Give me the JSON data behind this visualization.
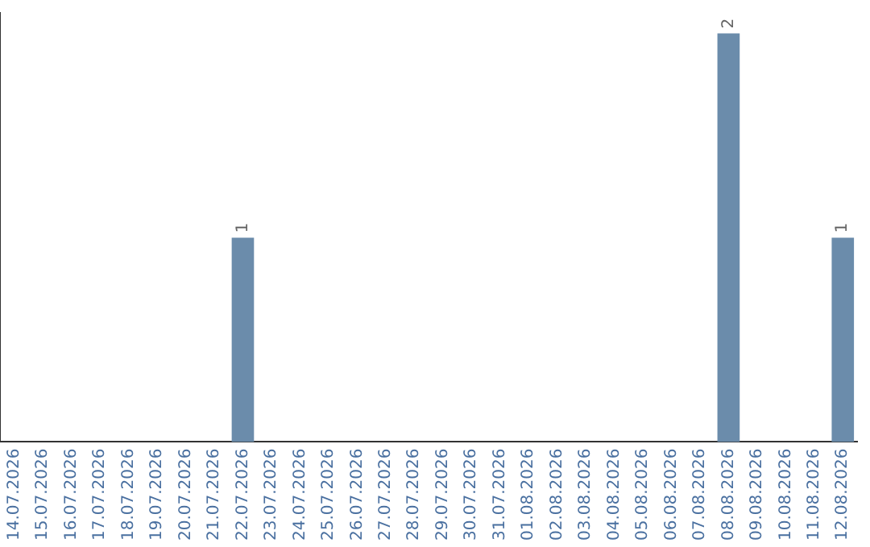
{
  "chart_data": {
    "type": "bar",
    "categories": [
      "14.07.2026",
      "15.07.2026",
      "16.07.2026",
      "17.07.2026",
      "18.07.2026",
      "19.07.2026",
      "20.07.2026",
      "21.07.2026",
      "22.07.2026",
      "23.07.2026",
      "24.07.2026",
      "25.07.2026",
      "26.07.2026",
      "27.07.2026",
      "28.07.2026",
      "29.07.2026",
      "30.07.2026",
      "31.07.2026",
      "01.08.2026",
      "02.08.2026",
      "03.08.2026",
      "04.08.2026",
      "05.08.2026",
      "06.08.2026",
      "07.08.2026",
      "08.08.2026",
      "09.08.2026",
      "10.08.2026",
      "11.08.2026",
      "12.08.2026"
    ],
    "values": [
      0,
      0,
      0,
      0,
      0,
      0,
      0,
      0,
      1,
      0,
      0,
      0,
      0,
      0,
      0,
      0,
      0,
      0,
      0,
      0,
      0,
      0,
      0,
      0,
      0,
      2,
      0,
      0,
      0,
      1
    ],
    "value_labels": [
      null,
      null,
      null,
      null,
      null,
      null,
      null,
      null,
      "1",
      null,
      null,
      null,
      null,
      null,
      null,
      null,
      null,
      null,
      null,
      null,
      null,
      null,
      null,
      null,
      null,
      "2",
      null,
      null,
      null,
      "1"
    ],
    "color": "#6b8cab",
    "ylim": [
      0,
      2.1
    ],
    "grid": false,
    "legend": false,
    "tick_labels": "x"
  }
}
